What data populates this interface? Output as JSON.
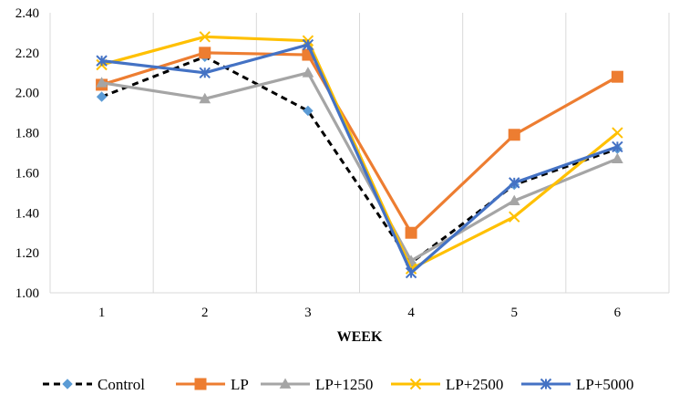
{
  "chart_data": {
    "type": "line",
    "title": "",
    "xlabel": "WEEK",
    "ylabel": "",
    "x": [
      1,
      2,
      3,
      4,
      5,
      6
    ],
    "categories": [
      "1",
      "2",
      "3",
      "4",
      "5",
      "6"
    ],
    "ylim": [
      1.0,
      2.4
    ],
    "yticks": [
      "1.00",
      "1.20",
      "1.40",
      "1.60",
      "1.80",
      "2.00",
      "2.20",
      "2.40"
    ],
    "grid": "vertical",
    "legend_position": "bottom",
    "series": [
      {
        "name": "Control",
        "values": [
          1.98,
          2.18,
          1.91,
          1.15,
          1.54,
          1.72
        ],
        "color": "#000000",
        "marker": "diamond",
        "marker_color": "#5b9bd5",
        "dashed": true
      },
      {
        "name": "LP",
        "values": [
          2.04,
          2.2,
          2.19,
          1.3,
          1.79,
          2.08
        ],
        "color": "#ed7d31",
        "marker": "square",
        "marker_color": "#ed7d31",
        "dashed": false
      },
      {
        "name": "LP+1250",
        "values": [
          2.05,
          1.97,
          2.1,
          1.16,
          1.46,
          1.67
        ],
        "color": "#a5a5a5",
        "marker": "triangle",
        "marker_color": "#a5a5a5",
        "dashed": false
      },
      {
        "name": "LP+2500",
        "values": [
          2.14,
          2.28,
          2.26,
          1.12,
          1.38,
          1.8
        ],
        "color": "#ffc000",
        "marker": "x",
        "marker_color": "#ffc000",
        "dashed": false
      },
      {
        "name": "LP+5000",
        "values": [
          2.16,
          2.1,
          2.24,
          1.1,
          1.55,
          1.73
        ],
        "color": "#4472c4",
        "marker": "star",
        "marker_color": "#4472c4",
        "dashed": false
      }
    ]
  }
}
